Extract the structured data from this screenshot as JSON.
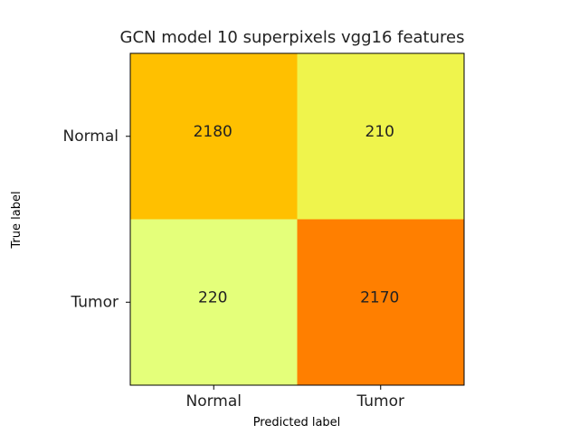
{
  "chart_data": {
    "type": "heatmap",
    "title": "GCN model 10 superpixels vgg16 features",
    "xlabel": "Predicted label",
    "ylabel": "True label",
    "x_categories": [
      "Normal",
      "Tumor"
    ],
    "y_categories": [
      "Normal",
      "Tumor"
    ],
    "values": [
      [
        2180,
        210
      ],
      [
        220,
        2170
      ]
    ],
    "colormap": "Wistia",
    "colorbar": false,
    "grid": false,
    "cell_colors": [
      [
        "#ffc000",
        "#eff44c"
      ],
      [
        "#e4ff7a",
        "#ff7f00"
      ]
    ]
  }
}
